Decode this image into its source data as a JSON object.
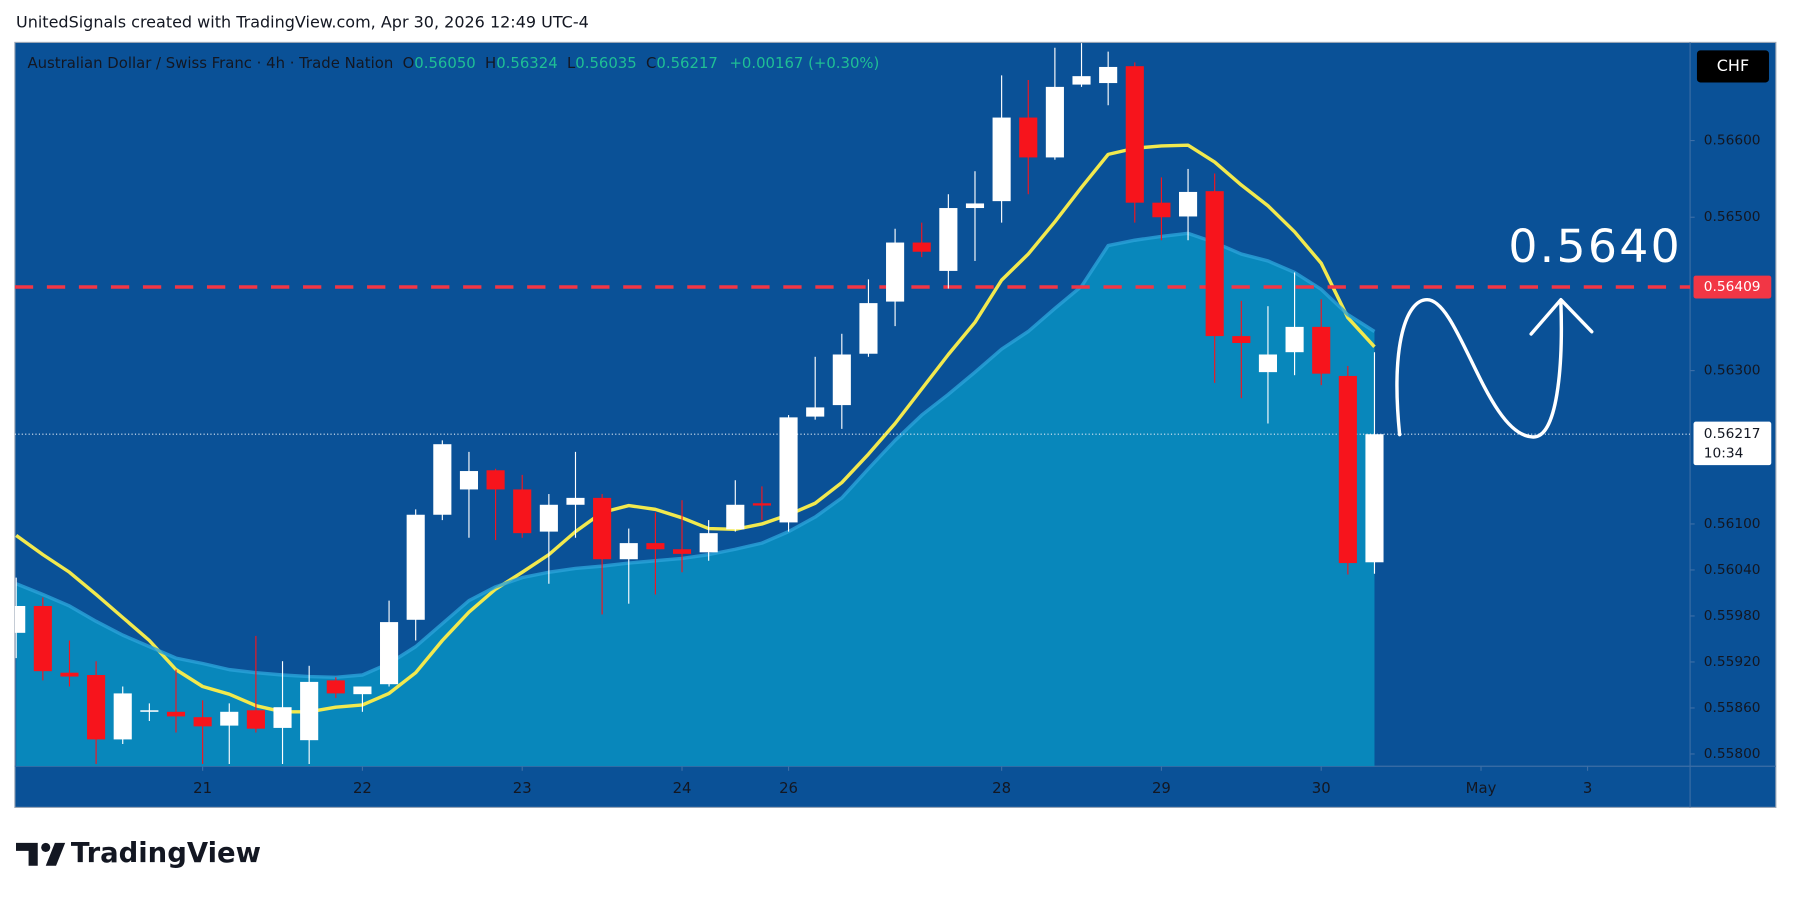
{
  "header": {
    "text": "UnitedSignals created with TradingView.com, Apr 30, 2026 12:49 UTC-4"
  },
  "footer": {
    "brand": "TradingView"
  },
  "chart_data": {
    "type": "candlestick",
    "title": "Australian Dollar / Swiss Franc · 4h · Trade Nation",
    "ohlc_legend": [
      {
        "label": "O",
        "value": "0.56050"
      },
      {
        "label": "H",
        "value": "0.56324"
      },
      {
        "label": "L",
        "value": "0.56035"
      },
      {
        "label": "C",
        "value": "0.56217"
      }
    ],
    "change": "+0.00167 (+0.30%)",
    "currency": "CHF",
    "x": [
      0,
      1,
      2,
      3,
      4,
      5,
      6,
      7,
      8,
      9,
      10,
      11,
      12,
      13,
      14,
      15,
      16,
      17,
      18,
      19,
      20,
      21,
      22,
      23,
      24,
      25,
      26,
      27,
      28,
      29,
      30,
      31,
      32,
      33,
      34,
      35,
      36,
      37,
      38,
      39,
      40,
      41,
      42,
      43,
      44,
      45,
      46,
      47,
      48,
      49,
      50,
      51
    ],
    "open": [
      0.55958,
      0.55993,
      0.55906,
      0.55903,
      0.55819,
      0.55855,
      0.55855,
      0.55848,
      0.55837,
      0.55857,
      0.55834,
      0.55818,
      0.55896,
      0.55878,
      0.55891,
      0.55975,
      0.56112,
      0.56145,
      0.5617,
      0.56145,
      0.5609,
      0.56125,
      0.56134,
      0.56054,
      0.56075,
      0.56067,
      0.56063,
      0.56093,
      0.56127,
      0.56102,
      0.5624,
      0.56255,
      0.56322,
      0.5639,
      0.56467,
      0.5643,
      0.56512,
      0.56521,
      0.5663,
      0.56578,
      0.56673,
      0.56675,
      0.56697,
      0.56519,
      0.56501,
      0.56534,
      0.56345,
      0.56298,
      0.56324,
      0.56357,
      0.56293,
      0.5605
    ],
    "high": [
      0.5603,
      0.56004,
      0.55948,
      0.55921,
      0.55888,
      0.55866,
      0.5591,
      0.5587,
      0.55866,
      0.55954,
      0.55921,
      0.55915,
      0.559,
      0.55888,
      0.56,
      0.56119,
      0.56209,
      0.56194,
      0.56172,
      0.56164,
      0.56139,
      0.56194,
      0.56139,
      0.56094,
      0.56115,
      0.56131,
      0.56105,
      0.56157,
      0.56149,
      0.56242,
      0.56318,
      0.56348,
      0.56419,
      0.56485,
      0.56493,
      0.5653,
      0.5656,
      0.56685,
      0.56679,
      0.56721,
      0.56727,
      0.56716,
      0.56702,
      0.56552,
      0.56563,
      0.56557,
      0.56391,
      0.56384,
      0.56428,
      0.56393,
      0.56306,
      0.56324
    ],
    "low": [
      0.55925,
      0.55896,
      0.55888,
      0.55787,
      0.55813,
      0.55843,
      0.55828,
      0.55787,
      0.55787,
      0.55828,
      0.55787,
      0.55787,
      0.55873,
      0.55855,
      0.55888,
      0.55948,
      0.56105,
      0.56082,
      0.56079,
      0.56082,
      0.56022,
      0.56082,
      0.55982,
      0.55996,
      0.56008,
      0.56037,
      0.56052,
      0.5609,
      0.56105,
      0.5609,
      0.56236,
      0.56224,
      0.56318,
      0.56358,
      0.56448,
      0.56407,
      0.56443,
      0.56493,
      0.5653,
      0.56575,
      0.5667,
      0.56646,
      0.56493,
      0.5647,
      0.5647,
      0.56284,
      0.56264,
      0.56231,
      0.56294,
      0.56281,
      0.56034,
      0.56035
    ],
    "close": [
      0.55993,
      0.55908,
      0.55901,
      0.55819,
      0.55879,
      0.55857,
      0.55849,
      0.55836,
      0.55855,
      0.55833,
      0.55861,
      0.55894,
      0.55879,
      0.55888,
      0.55972,
      0.56112,
      0.56204,
      0.56169,
      0.56145,
      0.56088,
      0.56125,
      0.56134,
      0.56054,
      0.56075,
      0.56067,
      0.56061,
      0.56088,
      0.56125,
      0.56124,
      0.56239,
      0.56252,
      0.56321,
      0.56388,
      0.56467,
      0.56455,
      0.56512,
      0.56518,
      0.5663,
      0.56578,
      0.5667,
      0.56684,
      0.56696,
      0.56519,
      0.565,
      0.56533,
      0.56345,
      0.56336,
      0.56321,
      0.56357,
      0.56296,
      0.56049,
      0.56217
    ],
    "up_color": "#ffffff",
    "down_color": "#f7141c",
    "series": [
      {
        "color": "#f2e94e",
        "values": [
          0.56085,
          0.5606,
          0.56037,
          0.56008,
          0.55978,
          0.55948,
          0.5591,
          0.55888,
          0.55878,
          0.55863,
          0.55855,
          0.55855,
          0.55861,
          0.55864,
          0.55879,
          0.55906,
          0.55948,
          0.55985,
          0.56015,
          0.56037,
          0.5606,
          0.5609,
          0.56115,
          0.56124,
          0.56119,
          0.56108,
          0.56094,
          0.56093,
          0.561,
          0.56112,
          0.56127,
          0.56154,
          0.56191,
          0.56231,
          0.56276,
          0.56321,
          0.56363,
          0.56418,
          0.56452,
          0.56494,
          0.56539,
          0.56582,
          0.5659,
          0.56593,
          0.56594,
          0.56572,
          0.56542,
          0.56515,
          0.56481,
          0.5644,
          0.56369,
          0.56331
        ]
      },
      {
        "color": "#2aa3da",
        "fill": "#0887bb",
        "values": [
          0.56022,
          0.56008,
          0.55993,
          0.55973,
          0.55955,
          0.5594,
          0.55925,
          0.55918,
          0.5591,
          0.55906,
          0.55903,
          0.55901,
          0.559,
          0.55903,
          0.55918,
          0.5594,
          0.5597,
          0.56,
          0.56018,
          0.5603,
          0.56037,
          0.56042,
          0.56045,
          0.56049,
          0.56052,
          0.56055,
          0.5606,
          0.56067,
          0.56075,
          0.5609,
          0.56109,
          0.56134,
          0.56172,
          0.56209,
          0.56242,
          0.56269,
          0.56298,
          0.56328,
          0.56351,
          0.56381,
          0.5641,
          0.56463,
          0.5647,
          0.56475,
          0.56479,
          0.56467,
          0.56452,
          0.56443,
          0.56428,
          0.56406,
          0.56373,
          0.56351
        ]
      }
    ],
    "xlim": [
      -0.05,
      62.85
    ],
    "xticks": [
      {
        "value": 7,
        "label": "21"
      },
      {
        "value": 13,
        "label": "22"
      },
      {
        "value": 19,
        "label": "23"
      },
      {
        "value": 25,
        "label": "24"
      },
      {
        "value": 29,
        "label": "26"
      },
      {
        "value": 37,
        "label": "28"
      },
      {
        "value": 43,
        "label": "29"
      },
      {
        "value": 49,
        "label": "30"
      },
      {
        "value": 55,
        "label": "May"
      },
      {
        "value": 59,
        "label": "3"
      }
    ],
    "ylim": [
      0.55784,
      0.56728
    ],
    "yticks": [
      {
        "value": 0.558,
        "label": "0.55800"
      },
      {
        "value": 0.5586,
        "label": "0.55860"
      },
      {
        "value": 0.5592,
        "label": "0.55920"
      },
      {
        "value": 0.5598,
        "label": "0.55980"
      },
      {
        "value": 0.5604,
        "label": "0.56040"
      },
      {
        "value": 0.561,
        "label": "0.56100"
      },
      {
        "value": 0.563,
        "label": "0.56300"
      },
      {
        "value": 0.565,
        "label": "0.56500"
      },
      {
        "value": 0.566,
        "label": "0.56600"
      }
    ],
    "hline": {
      "value": 0.56409,
      "label": "0.56409",
      "color": "#f23645"
    },
    "last_price": {
      "value": 0.56217,
      "label": "0.56217",
      "countdown": "10:34"
    },
    "annotation": "0.5640"
  }
}
